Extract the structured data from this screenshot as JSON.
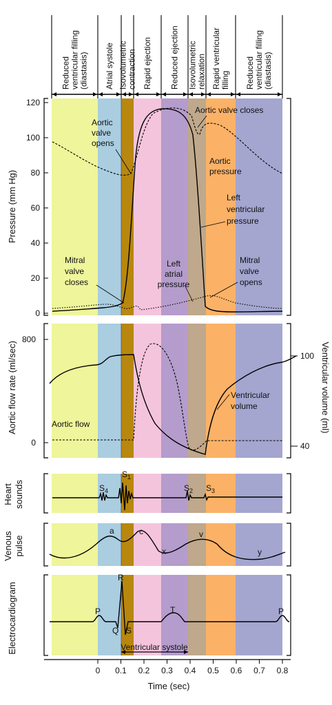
{
  "phases": [
    {
      "label": "Reduced ventricular filling (diastasis)",
      "lines": [
        "Reduced",
        "ventricular filling",
        "(diastasis)"
      ],
      "color": "#eef59a"
    },
    {
      "label": "Atrial systole",
      "lines": [
        "Atrial systole"
      ],
      "color": "#aacde0"
    },
    {
      "label": "Isovolumetric contraction",
      "lines": [
        "Isovolumetric",
        "contraction"
      ],
      "color": "#b8870f"
    },
    {
      "label": "Rapid ejection",
      "lines": [
        "Rapid ejection"
      ],
      "color": "#f4c4dc"
    },
    {
      "label": "Reduced ejection",
      "lines": [
        "Reduced ejection"
      ],
      "color": "#b49ccc"
    },
    {
      "label": "Isovolumetric relaxation",
      "lines": [
        "Isovolumetric",
        "relaxation"
      ],
      "color": "#bfa88b"
    },
    {
      "label": "Rapid ventricular filling",
      "lines": [
        "Rapid ventricular",
        "filling"
      ],
      "color": "#fbb267"
    },
    {
      "label": "Reduced ventricular filling (diastasis)",
      "lines": [
        "Reduced",
        "ventricular filling",
        "(diastasis)"
      ],
      "color": "#a4a6d0"
    }
  ],
  "pressure_panel": {
    "ylabel": "Pressure (mm Hg)",
    "yticks": [
      "0",
      "20",
      "40",
      "60",
      "80",
      "100",
      "120"
    ],
    "annotations": {
      "aortic_valve_closes": "Aortic valve closes",
      "aortic_valve_opens": [
        "Aortic",
        "valve",
        "opens"
      ],
      "aortic_pressure": [
        "Aortic",
        "pressure"
      ],
      "left_ventricular_pressure": [
        "Left",
        "ventricular",
        "pressure"
      ],
      "mitral_valve_closes": [
        "Mitral",
        "valve",
        "closes"
      ],
      "left_atrial_pressure": [
        "Left",
        "atrial",
        "pressure"
      ],
      "mitral_valve_opens": [
        "Mitral",
        "valve",
        "opens"
      ]
    }
  },
  "flow_panel": {
    "ylabel": "Aortic flow rate (ml/sec)",
    "yticks": [
      "0",
      "800"
    ],
    "y2label": "Ventricular volume (ml)",
    "y2ticks": [
      "40",
      "100"
    ],
    "annotations": {
      "aortic_flow": "Aortic flow",
      "ventricular_volume": [
        "Ventricular",
        "volume"
      ]
    }
  },
  "heart_sounds_panel": {
    "ylabel": [
      "Heart",
      "sounds"
    ],
    "labels": {
      "s4": "S4",
      "s1": "S1",
      "s2": "S2",
      "s3": "S3"
    }
  },
  "venous_panel": {
    "ylabel": [
      "Venous",
      "pulse"
    ],
    "labels": {
      "a": "a",
      "c": "c",
      "x": "x",
      "v": "v",
      "y": "y"
    }
  },
  "ecg_panel": {
    "ylabel": "Electrocardiogram",
    "labels": {
      "p1": "P",
      "q": "Q",
      "r": "R",
      "s": "S",
      "t": "T",
      "p2": "P"
    }
  },
  "ventricular_systole": "Ventricular systole",
  "x_axis": {
    "title": "Time (sec)",
    "ticks": [
      "0",
      "0.1",
      "0.2",
      "0.3",
      "0.4",
      "0.5",
      "0.6",
      "0.7",
      "0.8"
    ]
  }
}
